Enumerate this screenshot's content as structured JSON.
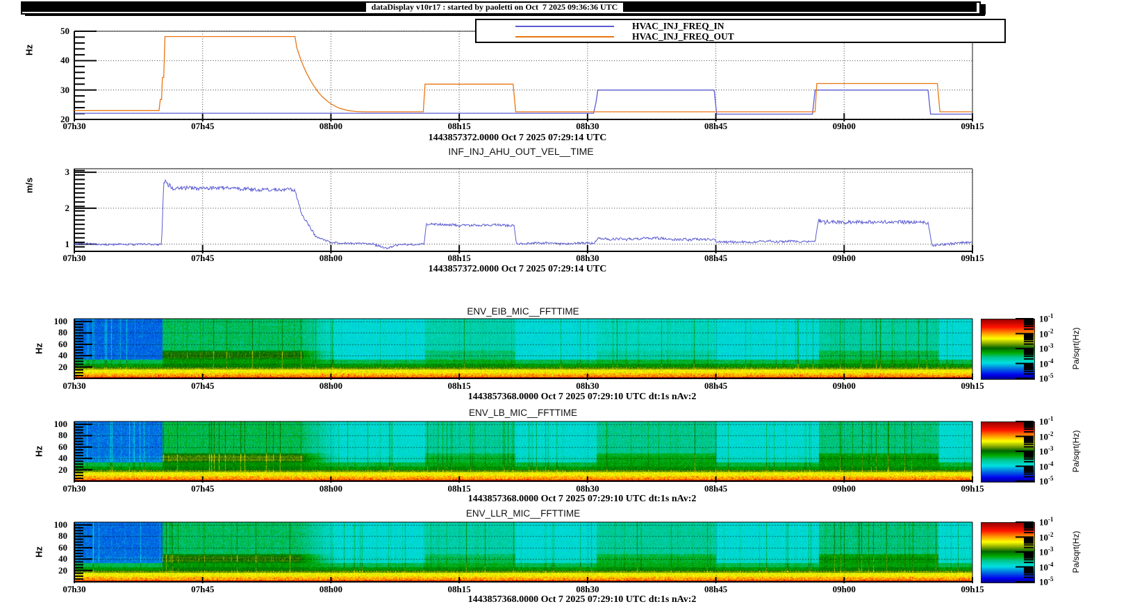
{
  "header": {
    "title": "dataDisplay v10r17 : started by paoletti on Oct  7 2025 09:36:36 UTC"
  },
  "time_axis": {
    "labels": [
      "07h30",
      "07h45",
      "08h00",
      "08h15",
      "08h30",
      "08h45",
      "09h00",
      "09h15"
    ],
    "minutes": [
      0,
      15,
      30,
      45,
      60,
      75,
      90,
      105
    ],
    "span_minutes": 105
  },
  "colormap": {
    "stops": [
      [
        0.0,
        "#00008f"
      ],
      [
        0.07,
        "#0000ee"
      ],
      [
        0.18,
        "#0077e0"
      ],
      [
        0.27,
        "#00e0e0"
      ],
      [
        0.36,
        "#00c896"
      ],
      [
        0.44,
        "#00aa00"
      ],
      [
        0.52,
        "#006400"
      ],
      [
        0.6,
        "#8faf00"
      ],
      [
        0.68,
        "#ffff00"
      ],
      [
        0.77,
        "#ff9500"
      ],
      [
        0.87,
        "#ff1000"
      ],
      [
        1.0,
        "#990000"
      ]
    ],
    "decade_exponents": [
      "-1",
      "-2",
      "-3",
      "-4",
      "-5"
    ],
    "grid_color": "#3a3a3a"
  },
  "chart_data": [
    {
      "type": "line",
      "name": "HVAC_INJ_FREQ",
      "ylabel": "Hz",
      "ylim": [
        20,
        50
      ],
      "yticks": [
        20,
        30,
        40,
        50
      ],
      "minor_step": 2,
      "timestamp": "1443857372.0000 Oct 7 2025 07:29:14 UTC",
      "legend": [
        {
          "label": "HVAC_INJ_FREQ_IN",
          "color": "#5a5ad2"
        },
        {
          "label": "HVAC_INJ_FREQ_OUT",
          "color": "#e87511"
        }
      ],
      "series": [
        {
          "name": "HVAC_INJ_FREQ_IN",
          "color": "#5a5ad2",
          "points": [
            [
              0,
              22.1
            ],
            [
              60.7,
              22.1
            ],
            [
              61,
              26
            ],
            [
              61.2,
              30
            ],
            [
              74.8,
              30
            ],
            [
              75.1,
              21.8
            ],
            [
              86.3,
              21.8
            ],
            [
              86.6,
              30
            ],
            [
              99.8,
              30
            ],
            [
              100.1,
              21.8
            ],
            [
              105,
              21.8
            ]
          ]
        },
        {
          "name": "HVAC_INJ_FREQ_OUT",
          "color": "#e87511",
          "points": [
            [
              0,
              23
            ],
            [
              9.9,
              23
            ],
            [
              10.05,
              26.8
            ],
            [
              10.2,
              26.8
            ],
            [
              10.3,
              34.3
            ],
            [
              10.45,
              34.3
            ],
            [
              10.6,
              48.2
            ],
            [
              25.8,
              48.2
            ],
            [
              26,
              44.5
            ],
            [
              26.4,
              41
            ],
            [
              26.8,
              38
            ],
            [
              27.2,
              35.5
            ],
            [
              27.6,
              33.3
            ],
            [
              28,
              31.4
            ],
            [
              28.5,
              29.3
            ],
            [
              29,
              27.7
            ],
            [
              29.5,
              26.4
            ],
            [
              30,
              25.3
            ],
            [
              30.5,
              24.5
            ],
            [
              31,
              23.8
            ],
            [
              31.5,
              23.4
            ],
            [
              32,
              23
            ],
            [
              33,
              22.7
            ],
            [
              34,
              22.6
            ],
            [
              40.8,
              22.6
            ],
            [
              41,
              32
            ],
            [
              51.3,
              32
            ],
            [
              51.6,
              22.6
            ],
            [
              86.6,
              22.6
            ],
            [
              86.8,
              32.2
            ],
            [
              100.9,
              32.2
            ],
            [
              101.2,
              22.6
            ],
            [
              105,
              22.6
            ]
          ]
        }
      ]
    },
    {
      "type": "line",
      "title": "INF_INJ_AHU_OUT_VEL__TIME",
      "ylabel": "m/s",
      "ylim": [
        0.8,
        3.1
      ],
      "yticks": [
        1,
        2,
        3
      ],
      "minor_step": 0.125,
      "timestamp": "1443857372.0000 Oct 7 2025 07:29:14 UTC",
      "series": [
        {
          "name": "INF_INJ_AHU_OUT_VEL",
          "color": "#5a5ad2",
          "seed": 91,
          "segments": [
            [
              0,
              10.2,
              1.02,
              1.02,
              0.025
            ],
            [
              10.2,
              10.45,
              1.02,
              2.8,
              0.02
            ],
            [
              10.45,
              11.5,
              2.8,
              2.6,
              0.06
            ],
            [
              11.5,
              25.8,
              2.58,
              2.52,
              0.05
            ],
            [
              25.8,
              26.6,
              2.52,
              1.85,
              0.05
            ],
            [
              26.6,
              28.2,
              1.85,
              1.22,
              0.04
            ],
            [
              28.2,
              30,
              1.22,
              1.04,
              0.03
            ],
            [
              30,
              35,
              1.03,
              1.0,
              0.025
            ],
            [
              35,
              36.6,
              0.98,
              0.88,
              0.03
            ],
            [
              36.6,
              38,
              0.88,
              1.0,
              0.03
            ],
            [
              38,
              40.9,
              1.0,
              1.02,
              0.025
            ],
            [
              40.9,
              41.15,
              1.02,
              1.56,
              0.02
            ],
            [
              41.15,
              51.4,
              1.56,
              1.52,
              0.035
            ],
            [
              51.4,
              51.7,
              1.52,
              1.0,
              0.02
            ],
            [
              51.7,
              60.8,
              1.0,
              1.04,
              0.03
            ],
            [
              60.8,
              61.2,
              1.04,
              1.17,
              0.03
            ],
            [
              61.2,
              74.8,
              1.17,
              1.12,
              0.035
            ],
            [
              74.8,
              75.2,
              1.12,
              1.05,
              0.03
            ],
            [
              75.2,
              86.6,
              1.05,
              1.1,
              0.03
            ],
            [
              86.6,
              87,
              1.1,
              1.68,
              0.03
            ],
            [
              87,
              88,
              1.68,
              1.6,
              0.05
            ],
            [
              88,
              99.8,
              1.63,
              1.58,
              0.05
            ],
            [
              99.8,
              100.3,
              1.58,
              0.95,
              0.04
            ],
            [
              100.3,
              103,
              0.95,
              1.0,
              0.035
            ],
            [
              103,
              105,
              1.0,
              1.04,
              0.03
            ]
          ]
        }
      ]
    },
    {
      "type": "heatmap",
      "title": "ENV_EIB_MIC__FFTTIME",
      "ylabel": "Hz",
      "ylim": [
        0,
        105
      ],
      "yticks": [
        20,
        40,
        60,
        80,
        100
      ],
      "colorbar_unit": "Pa/sqrt(Hz)",
      "timestamp": "1443857368.0000 Oct 7 2025 07:29:10 UTC dt:1s nAv:2",
      "seed": 11,
      "quiet_end": 10.3,
      "bands": [
        [
          0,
          2,
          0.9
        ],
        [
          2,
          7,
          0.76
        ],
        [
          7,
          10,
          0.72
        ],
        [
          10,
          16,
          0.67
        ],
        [
          16,
          20,
          0.58
        ],
        [
          20,
          26,
          0.46
        ],
        [
          26,
          33,
          0.4
        ],
        [
          33,
          105,
          0.28
        ]
      ],
      "events": [
        {
          "t0": 10.3,
          "t1": 26.3,
          "a": 1,
          "fade": 4.7
        },
        {
          "t0": 41,
          "t1": 51.5,
          "a": 0.5
        },
        {
          "t0": 61,
          "t1": 75,
          "a": 0.3
        },
        {
          "t0": 87,
          "t1": 101,
          "a": 0.6
        }
      ]
    },
    {
      "type": "heatmap",
      "title": "ENV_LB_MIC__FFTTIME",
      "ylabel": "Hz",
      "ylim": [
        0,
        105
      ],
      "yticks": [
        20,
        40,
        60,
        80,
        100
      ],
      "colorbar_unit": "Pa/sqrt(Hz)",
      "timestamp": "1443857368.0000 Oct 7 2025 07:29:10 UTC dt:1s nAv:2",
      "seed": 23,
      "quiet_end": 10.3,
      "bands": [
        [
          0,
          2,
          0.9
        ],
        [
          2,
          7,
          0.76
        ],
        [
          7,
          10,
          0.72
        ],
        [
          10,
          16,
          0.67
        ],
        [
          16,
          20,
          0.58
        ],
        [
          20,
          26,
          0.46
        ],
        [
          26,
          33,
          0.41
        ],
        [
          33,
          45,
          0.31
        ],
        [
          45,
          105,
          0.29
        ]
      ],
      "events": [
        {
          "t0": 10.3,
          "t1": 26.3,
          "a": 1,
          "fade": 4.7
        },
        {
          "t0": 41,
          "t1": 51.5,
          "a": 0.55
        },
        {
          "t0": 61,
          "t1": 75,
          "a": 0.65
        },
        {
          "t0": 87,
          "t1": 101,
          "a": 0.75
        }
      ]
    },
    {
      "type": "heatmap",
      "title": "ENV_LLR_MIC__FFTTIME",
      "ylabel": "Hz",
      "ylim": [
        0,
        105
      ],
      "yticks": [
        20,
        40,
        60,
        80,
        100
      ],
      "colorbar_unit": "Pa/sqrt(Hz)",
      "timestamp": "1443857368.0000 Oct 7 2025 07:29:10 UTC dt:1s nAv:2",
      "seed": 37,
      "quiet_end": 10.3,
      "bands": [
        [
          0,
          2,
          0.9
        ],
        [
          2,
          7,
          0.76
        ],
        [
          7,
          10,
          0.72
        ],
        [
          10,
          16,
          0.67
        ],
        [
          16,
          20,
          0.58
        ],
        [
          20,
          26,
          0.46
        ],
        [
          26,
          33,
          0.4
        ],
        [
          33,
          45,
          0.3
        ],
        [
          45,
          105,
          0.285
        ]
      ],
      "events": [
        {
          "t0": 10.3,
          "t1": 26.3,
          "a": 0.95,
          "fade": 4.7
        },
        {
          "t0": 41,
          "t1": 51.5,
          "a": 0.5
        },
        {
          "t0": 61,
          "t1": 75,
          "a": 0.6
        },
        {
          "t0": 87,
          "t1": 101,
          "a": 0.8
        }
      ]
    }
  ]
}
